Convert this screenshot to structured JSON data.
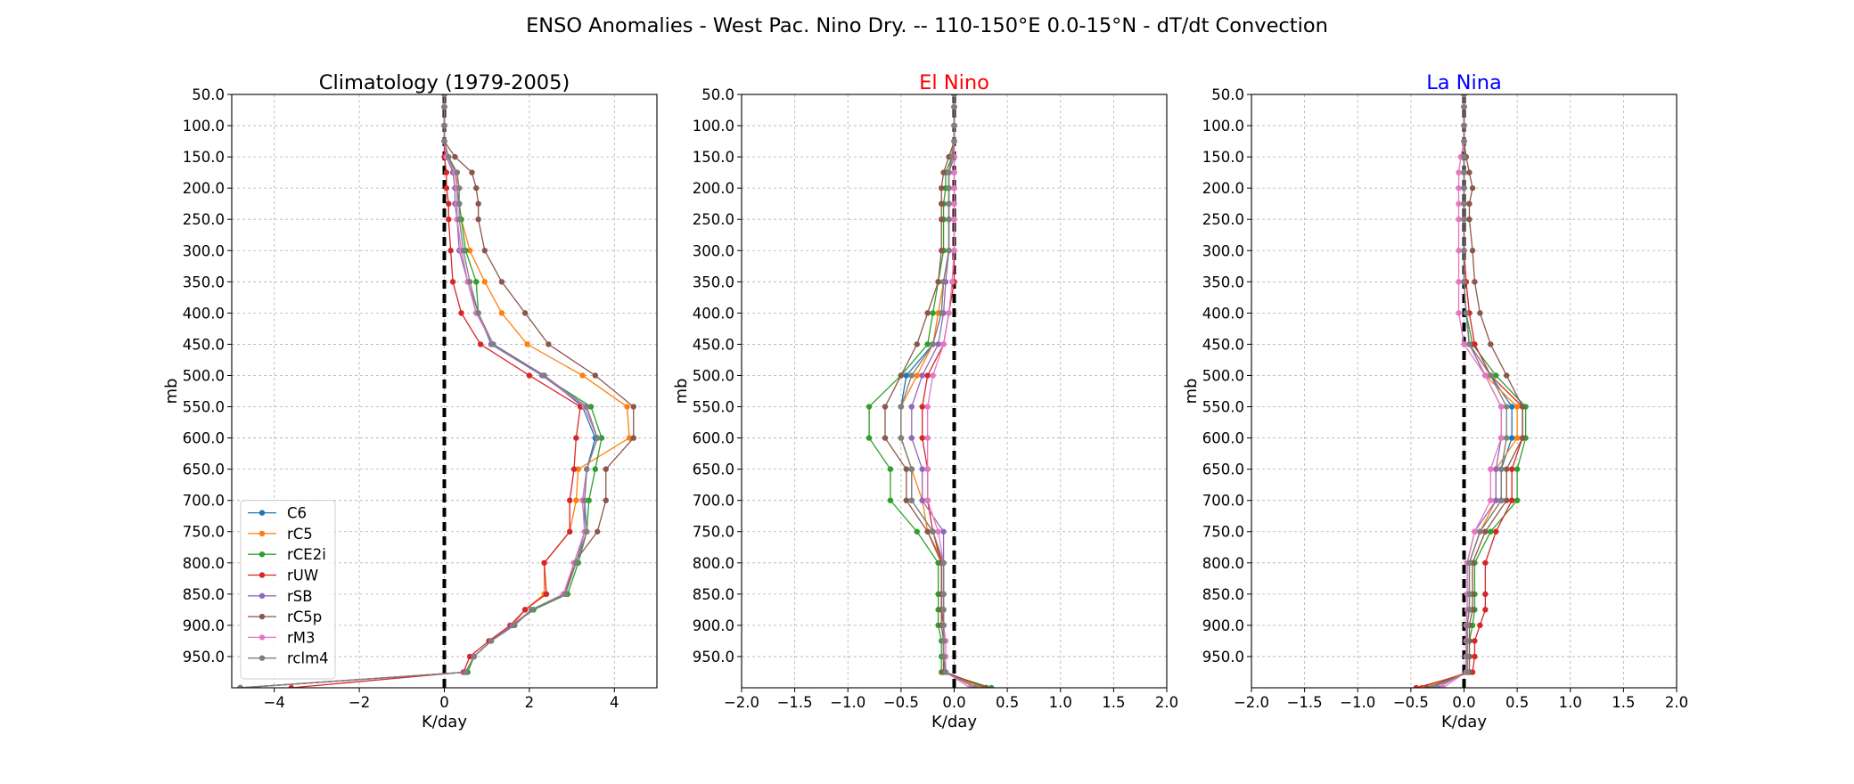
{
  "figure": {
    "suptitle": "ENSO Anomalies - West Pac. Nino Dry. -- 110-150°E 0.0-15°N - dT/dt Convection"
  },
  "chart_data": [
    {
      "type": "line",
      "title": "Climatology (1979-2005)",
      "title_color": "#000000",
      "xlabel": "K/day",
      "ylabel": "mb",
      "xlim": [
        -5,
        5
      ],
      "ylim": [
        1000,
        50
      ],
      "xticks": [
        -4,
        -2,
        0,
        2,
        4
      ],
      "xtick_labels": [
        "−4",
        "−2",
        "0",
        "2",
        "4"
      ],
      "yticks": [
        50,
        100,
        150,
        200,
        250,
        300,
        350,
        400,
        450,
        500,
        550,
        600,
        650,
        700,
        750,
        800,
        850,
        900,
        950
      ],
      "ytick_labels": [
        "50.0",
        "100.0",
        "150.0",
        "200.0",
        "250.0",
        "300.0",
        "350.0",
        "400.0",
        "450.0",
        "500.0",
        "550.0",
        "600.0",
        "650.0",
        "700.0",
        "750.0",
        "800.0",
        "850.0",
        "900.0",
        "950.0"
      ],
      "grid": true,
      "legend": "lower-left",
      "zero_line": true,
      "levels": [
        50,
        70,
        100,
        125,
        150,
        175,
        200,
        225,
        250,
        300,
        350,
        400,
        450,
        500,
        550,
        600,
        650,
        700,
        750,
        800,
        850,
        875,
        900,
        925,
        950,
        975,
        1000
      ],
      "series": [
        {
          "name": "C6",
          "color": "#1f77b4",
          "values": [
            0,
            0,
            0,
            0,
            0.05,
            0.25,
            0.3,
            0.3,
            0.3,
            0.4,
            0.55,
            0.75,
            1.15,
            2.35,
            3.25,
            3.55,
            3.35,
            3.3,
            3.3,
            3.05,
            2.85,
            2.05,
            1.65,
            1.1,
            0.7,
            0.5,
            -4.8
          ]
        },
        {
          "name": "rC5",
          "color": "#ff7f0e",
          "values": [
            0,
            0,
            0,
            0,
            0.05,
            0.3,
            0.3,
            0.35,
            0.4,
            0.6,
            0.95,
            1.35,
            1.95,
            3.25,
            4.3,
            4.35,
            3.15,
            3.1,
            2.95,
            2.35,
            2.35,
            1.9,
            1.6,
            1.1,
            0.7,
            0.5,
            -4.8
          ]
        },
        {
          "name": "rCE2i",
          "color": "#2ca02c",
          "values": [
            0,
            0,
            0,
            0,
            0.1,
            0.25,
            0.3,
            0.35,
            0.4,
            0.5,
            0.75,
            0.8,
            1.1,
            2.3,
            3.45,
            3.7,
            3.55,
            3.4,
            3.35,
            3.15,
            2.9,
            2.1,
            1.6,
            1.1,
            0.7,
            0.55,
            -4.8
          ]
        },
        {
          "name": "rUW",
          "color": "#d62728",
          "values": [
            0,
            0,
            0,
            0,
            0,
            0.05,
            0.05,
            0.1,
            0.1,
            0.15,
            0.2,
            0.4,
            0.85,
            2.0,
            3.2,
            3.1,
            3.05,
            2.95,
            2.95,
            2.35,
            2.4,
            1.9,
            1.55,
            1.05,
            0.6,
            0.45,
            -3.6
          ]
        },
        {
          "name": "rSB",
          "color": "#9467bd",
          "values": [
            0,
            0,
            0,
            0,
            0.05,
            0.2,
            0.25,
            0.25,
            0.3,
            0.35,
            0.55,
            0.8,
            1.1,
            2.3,
            3.3,
            3.6,
            3.35,
            3.25,
            3.3,
            3.1,
            2.8,
            2.05,
            1.6,
            1.1,
            0.7,
            0.5,
            -4.8
          ]
        },
        {
          "name": "rC5p",
          "color": "#8c564b",
          "values": [
            0,
            0,
            0,
            0,
            0.25,
            0.65,
            0.75,
            0.8,
            0.8,
            0.95,
            1.35,
            1.9,
            2.45,
            3.55,
            4.45,
            4.45,
            3.8,
            3.8,
            3.6,
            3.05,
            2.85,
            2.05,
            1.65,
            1.1,
            0.7,
            0.5,
            -4.8
          ]
        },
        {
          "name": "rM3",
          "color": "#e377c2",
          "values": [
            0,
            0,
            0,
            0,
            0.05,
            0.25,
            0.3,
            0.3,
            0.3,
            0.4,
            0.55,
            0.75,
            1.15,
            2.35,
            3.3,
            3.6,
            3.35,
            3.25,
            3.3,
            3.05,
            2.8,
            2.05,
            1.65,
            1.1,
            0.7,
            0.5,
            -4.8
          ]
        },
        {
          "name": "rclm4",
          "color": "#7f7f7f",
          "values": [
            0,
            0,
            0,
            0,
            0.1,
            0.3,
            0.35,
            0.35,
            0.35,
            0.45,
            0.6,
            0.8,
            1.15,
            2.35,
            3.35,
            3.6,
            3.35,
            3.3,
            3.35,
            3.1,
            2.85,
            2.05,
            1.65,
            1.1,
            0.7,
            0.5,
            -4.8
          ]
        }
      ]
    },
    {
      "type": "line",
      "title": "El Nino",
      "title_color": "#ff0000",
      "xlabel": "K/day",
      "ylabel": "mb",
      "xlim": [
        -2,
        2
      ],
      "ylim": [
        1000,
        50
      ],
      "xticks": [
        -2,
        -1.5,
        -1,
        -0.5,
        0,
        0.5,
        1,
        1.5,
        2
      ],
      "xtick_labels": [
        "−2.0",
        "−1.5",
        "−1.0",
        "−0.5",
        "0.0",
        "0.5",
        "1.0",
        "1.5",
        "2.0"
      ],
      "yticks": [
        50,
        100,
        150,
        200,
        250,
        300,
        350,
        400,
        450,
        500,
        550,
        600,
        650,
        700,
        750,
        800,
        850,
        900,
        950
      ],
      "ytick_labels": [
        "50.0",
        "100.0",
        "150.0",
        "200.0",
        "250.0",
        "300.0",
        "350.0",
        "400.0",
        "450.0",
        "500.0",
        "550.0",
        "600.0",
        "650.0",
        "700.0",
        "750.0",
        "800.0",
        "850.0",
        "900.0",
        "950.0"
      ],
      "grid": true,
      "zero_line": true,
      "levels": [
        50,
        70,
        100,
        125,
        150,
        175,
        200,
        225,
        250,
        300,
        350,
        400,
        450,
        500,
        550,
        600,
        650,
        700,
        750,
        800,
        850,
        875,
        900,
        925,
        950,
        975,
        1000
      ],
      "series": [
        {
          "name": "C6",
          "color": "#1f77b4",
          "values": [
            0,
            0,
            0,
            0,
            -0.02,
            -0.05,
            -0.05,
            -0.05,
            -0.05,
            -0.05,
            -0.1,
            -0.12,
            -0.2,
            -0.45,
            -0.5,
            -0.5,
            -0.4,
            -0.4,
            -0.2,
            -0.1,
            -0.1,
            -0.1,
            -0.1,
            -0.1,
            -0.1,
            -0.1,
            0.25
          ]
        },
        {
          "name": "rC5",
          "color": "#ff7f0e",
          "values": [
            0,
            0,
            0,
            0,
            -0.03,
            -0.05,
            -0.05,
            -0.05,
            -0.05,
            -0.05,
            -0.1,
            -0.15,
            -0.2,
            -0.35,
            -0.5,
            -0.5,
            -0.4,
            -0.3,
            -0.25,
            -0.1,
            -0.1,
            -0.1,
            -0.1,
            -0.1,
            -0.1,
            -0.1,
            0.25
          ]
        },
        {
          "name": "rCE2i",
          "color": "#2ca02c",
          "values": [
            0,
            0,
            0,
            0,
            -0.02,
            -0.08,
            -0.08,
            -0.1,
            -0.1,
            -0.1,
            -0.15,
            -0.2,
            -0.25,
            -0.5,
            -0.8,
            -0.8,
            -0.6,
            -0.6,
            -0.35,
            -0.15,
            -0.15,
            -0.15,
            -0.15,
            -0.12,
            -0.12,
            -0.12,
            0.35
          ]
        },
        {
          "name": "rUW",
          "color": "#d62728",
          "values": [
            0,
            0,
            0,
            0,
            0,
            0,
            0,
            0,
            0,
            0,
            0,
            -0.05,
            -0.1,
            -0.25,
            -0.3,
            -0.3,
            -0.25,
            -0.25,
            -0.2,
            -0.12,
            -0.12,
            -0.12,
            -0.1,
            -0.1,
            -0.1,
            -0.08,
            0.3
          ]
        },
        {
          "name": "rSB",
          "color": "#9467bd",
          "values": [
            0,
            0,
            0,
            0,
            0,
            -0.05,
            -0.05,
            -0.05,
            -0.05,
            -0.05,
            -0.08,
            -0.1,
            -0.15,
            -0.3,
            -0.4,
            -0.4,
            -0.3,
            -0.3,
            -0.1,
            -0.1,
            -0.1,
            -0.1,
            -0.1,
            -0.1,
            -0.1,
            -0.08,
            0.2
          ]
        },
        {
          "name": "rC5p",
          "color": "#8c564b",
          "values": [
            0,
            0,
            0,
            0,
            -0.05,
            -0.1,
            -0.12,
            -0.12,
            -0.12,
            -0.12,
            -0.15,
            -0.25,
            -0.35,
            -0.5,
            -0.65,
            -0.65,
            -0.45,
            -0.45,
            -0.25,
            -0.12,
            -0.12,
            -0.12,
            -0.12,
            -0.1,
            -0.1,
            -0.1,
            0.3
          ]
        },
        {
          "name": "rM3",
          "color": "#e377c2",
          "values": [
            0,
            0,
            0,
            0,
            0,
            0,
            0,
            0,
            0,
            0,
            -0.02,
            -0.05,
            -0.1,
            -0.2,
            -0.25,
            -0.25,
            -0.25,
            -0.25,
            -0.15,
            -0.1,
            -0.1,
            -0.1,
            -0.1,
            -0.08,
            -0.08,
            -0.08,
            0.15
          ]
        },
        {
          "name": "rclm4",
          "color": "#7f7f7f",
          "values": [
            0,
            0,
            0,
            0,
            -0.02,
            -0.05,
            -0.05,
            -0.05,
            -0.05,
            -0.05,
            -0.1,
            -0.12,
            -0.2,
            -0.4,
            -0.5,
            -0.5,
            -0.4,
            -0.4,
            -0.2,
            -0.1,
            -0.1,
            -0.1,
            -0.1,
            -0.1,
            -0.1,
            -0.08,
            0.2
          ]
        }
      ]
    },
    {
      "type": "line",
      "title": "La Nina",
      "title_color": "#0000ff",
      "xlabel": "K/day",
      "ylabel": "mb",
      "xlim": [
        -2,
        2
      ],
      "ylim": [
        1000,
        50
      ],
      "xticks": [
        -2,
        -1.5,
        -1,
        -0.5,
        0,
        0.5,
        1,
        1.5,
        2
      ],
      "xtick_labels": [
        "−2.0",
        "−1.5",
        "−1.0",
        "−0.5",
        "0.0",
        "0.5",
        "1.0",
        "1.5",
        "2.0"
      ],
      "yticks": [
        50,
        100,
        150,
        200,
        250,
        300,
        350,
        400,
        450,
        500,
        550,
        600,
        650,
        700,
        750,
        800,
        850,
        900,
        950
      ],
      "ytick_labels": [
        "50.0",
        "100.0",
        "150.0",
        "200.0",
        "250.0",
        "300.0",
        "350.0",
        "400.0",
        "450.0",
        "500.0",
        "550.0",
        "600.0",
        "650.0",
        "700.0",
        "750.0",
        "800.0",
        "850.0",
        "900.0",
        "950.0"
      ],
      "grid": true,
      "zero_line": true,
      "levels": [
        50,
        70,
        100,
        125,
        150,
        175,
        200,
        225,
        250,
        300,
        350,
        400,
        450,
        500,
        550,
        600,
        650,
        700,
        750,
        800,
        850,
        875,
        900,
        925,
        950,
        975,
        1000
      ],
      "series": [
        {
          "name": "C6",
          "color": "#1f77b4",
          "values": [
            0,
            0,
            0,
            0,
            0,
            0,
            0,
            0,
            0,
            0,
            0,
            0.02,
            0.05,
            0.25,
            0.45,
            0.45,
            0.35,
            0.35,
            0.15,
            0.05,
            0.05,
            0.05,
            0.03,
            0.03,
            0.03,
            0.03,
            -0.3
          ]
        },
        {
          "name": "rC5",
          "color": "#ff7f0e",
          "values": [
            0,
            0,
            0,
            0,
            0,
            0,
            0,
            0,
            0,
            0,
            0,
            0.02,
            0.05,
            0.2,
            0.5,
            0.5,
            0.3,
            0.3,
            0.15,
            0.05,
            0.05,
            0.05,
            0.03,
            0.03,
            0.03,
            0.03,
            -0.4
          ]
        },
        {
          "name": "rCE2i",
          "color": "#2ca02c",
          "values": [
            0,
            0,
            0,
            0,
            0,
            0,
            0,
            0,
            0,
            0,
            0,
            0.02,
            0.08,
            0.3,
            0.58,
            0.58,
            0.5,
            0.5,
            0.25,
            0.1,
            0.1,
            0.1,
            0.08,
            0.05,
            0.05,
            0.05,
            -0.35
          ]
        },
        {
          "name": "rUW",
          "color": "#d62728",
          "values": [
            0,
            0,
            0,
            0,
            0,
            0,
            0,
            0,
            0,
            0,
            0.02,
            0.05,
            0.1,
            0.25,
            0.55,
            0.55,
            0.45,
            0.45,
            0.3,
            0.2,
            0.2,
            0.2,
            0.15,
            0.1,
            0.1,
            0.08,
            -0.45
          ]
        },
        {
          "name": "rSB",
          "color": "#9467bd",
          "values": [
            0,
            0,
            0,
            0,
            0,
            0,
            0,
            0,
            0,
            0,
            0,
            0.02,
            0.05,
            0.2,
            0.35,
            0.35,
            0.3,
            0.3,
            0.1,
            0.03,
            0.03,
            0.03,
            0.02,
            0.02,
            0.02,
            0.02,
            -0.25
          ]
        },
        {
          "name": "rC5p",
          "color": "#8c564b",
          "values": [
            0,
            0,
            0,
            0,
            0.02,
            0.05,
            0.08,
            0.05,
            0.05,
            0.08,
            0.1,
            0.15,
            0.25,
            0.4,
            0.55,
            0.55,
            0.4,
            0.4,
            0.2,
            0.08,
            0.08,
            0.08,
            0.05,
            0.05,
            0.05,
            0.05,
            -0.35
          ]
        },
        {
          "name": "rM3",
          "color": "#e377c2",
          "values": [
            0,
            0,
            0,
            0,
            -0.03,
            -0.05,
            -0.05,
            -0.05,
            -0.05,
            -0.05,
            -0.05,
            -0.05,
            0,
            0.2,
            0.35,
            0.35,
            0.25,
            0.25,
            0.1,
            0.03,
            0.03,
            0.03,
            0.02,
            0.02,
            0.02,
            0.02,
            -0.2
          ]
        },
        {
          "name": "rclm4",
          "color": "#7f7f7f",
          "values": [
            0,
            0,
            0,
            0,
            0,
            0,
            0,
            0,
            0,
            0,
            0,
            0.02,
            0.05,
            0.25,
            0.4,
            0.4,
            0.35,
            0.35,
            0.15,
            0.05,
            0.05,
            0.05,
            0.03,
            0.03,
            0.03,
            0.03,
            -0.3
          ]
        }
      ]
    }
  ]
}
